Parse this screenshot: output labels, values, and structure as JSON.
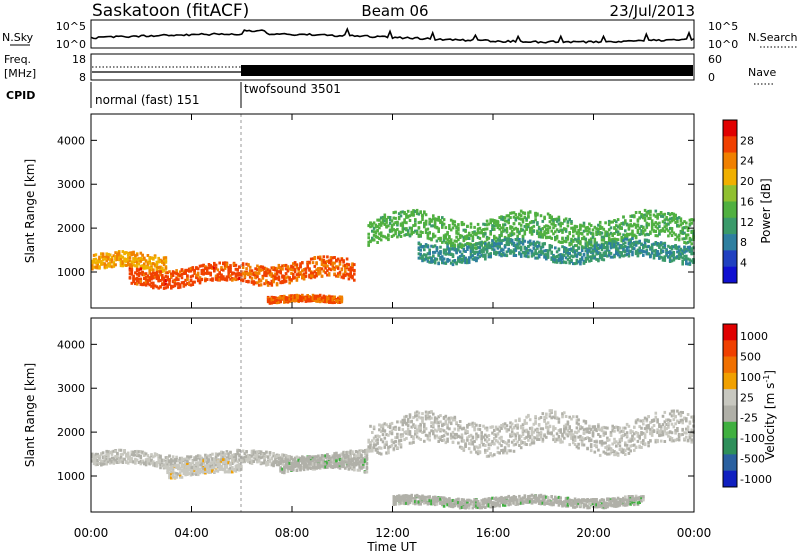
{
  "header": {
    "station": "Saskatoon (fitACF)",
    "beam": "Beam 06",
    "date": "23/Jul/2013"
  },
  "noise_panel": {
    "left_label": "N.Sky",
    "right_label": "N.Search",
    "left_ticks": [
      "10^5",
      "10^0"
    ],
    "right_ticks": [
      "10^5",
      "10^0"
    ]
  },
  "freq_panel": {
    "left_label_1": "Freq.",
    "left_label_2": "[MHz]",
    "right_label": "Nave",
    "left_ticks": [
      "18",
      "8"
    ],
    "right_ticks": [
      "60",
      "0"
    ]
  },
  "cpid_panel": {
    "label": "CPID",
    "segments": [
      {
        "name": "normal (fast) 151",
        "start_hour": 0,
        "end_hour": 6
      },
      {
        "name": "twofsound 3501",
        "start_hour": 6,
        "end_hour": 24
      }
    ]
  },
  "time_axis": {
    "label": "Time UT",
    "ticks": [
      "00:00",
      "04:00",
      "08:00",
      "12:00",
      "16:00",
      "20:00",
      "00:00"
    ],
    "range_hours": [
      0,
      24
    ]
  },
  "power_panel": {
    "ylabel": "Slant Range [km]",
    "yticks": [
      "1000",
      "2000",
      "3000",
      "4000"
    ],
    "colorbar_label": "Power [dB]",
    "colorbar_ticks": [
      "4",
      "8",
      "12",
      "16",
      "20",
      "24",
      "28"
    ]
  },
  "velocity_panel": {
    "ylabel": "Slant Range [km]",
    "yticks": [
      "1000",
      "2000",
      "3000",
      "4000"
    ],
    "colorbar_label": "Velocity [m s",
    "colorbar_label_sup": "-1",
    "colorbar_label_end": "]",
    "colorbar_ticks": [
      "1000",
      "500",
      "100",
      "25",
      "-25",
      "-100",
      "-500",
      "-1000"
    ]
  },
  "colors": {
    "power_scale": [
      "#1010d0",
      "#2040c0",
      "#2e7fa0",
      "#3a9a6a",
      "#50b040",
      "#90c030",
      "#f0b000",
      "#f08000",
      "#f04000",
      "#e00000"
    ],
    "velocity_scale": [
      "#1020c0",
      "#2a60a0",
      "#2e8f5a",
      "#40b040",
      "#b0b0a8",
      "#c8c8c0",
      "#f0a000",
      "#f07000",
      "#f04000",
      "#e00000"
    ]
  },
  "chart_data": [
    {
      "type": "heatmap",
      "title": "Power",
      "ylabel": "Slant Range [km]",
      "xlabel": "Time UT",
      "xlim": [
        0,
        24
      ],
      "ylim": [
        180,
        4600
      ],
      "colorbar": {
        "label": "Power [dB]",
        "range": [
          0,
          32
        ]
      },
      "features": [
        {
          "t_start": 0.0,
          "t_end": 3.0,
          "r_center": 1250,
          "width": 350,
          "value": 22
        },
        {
          "t_start": 1.5,
          "t_end": 6.0,
          "r_center": 950,
          "width": 400,
          "value": 27
        },
        {
          "t_start": 6.0,
          "t_end": 10.5,
          "r_center": 1050,
          "width": 450,
          "value": 26
        },
        {
          "t_start": 7.0,
          "t_end": 10.0,
          "r_center": 400,
          "width": 150,
          "value": 26
        },
        {
          "t_start": 11.0,
          "t_end": 24.0,
          "r_center": 2000,
          "width": 600,
          "value": 14
        },
        {
          "t_start": 13.0,
          "t_end": 24.0,
          "r_center": 1500,
          "width": 400,
          "value": 10
        }
      ]
    },
    {
      "type": "heatmap",
      "title": "Velocity",
      "ylabel": "Slant Range [km]",
      "xlabel": "Time UT",
      "xlim": [
        0,
        24
      ],
      "ylim": [
        180,
        4600
      ],
      "colorbar": {
        "label": "Velocity [m s-1]",
        "range": [
          -1000,
          1000
        ]
      },
      "features": [
        {
          "t_start": 0.0,
          "t_end": 11.0,
          "r_center": 1400,
          "width": 300,
          "value": 0
        },
        {
          "t_start": 3.0,
          "t_end": 6.0,
          "r_center": 1200,
          "width": 300,
          "value": 100
        },
        {
          "t_start": 7.5,
          "t_end": 11.0,
          "r_center": 1300,
          "width": 300,
          "value": -100
        },
        {
          "t_start": 11.0,
          "t_end": 24.0,
          "r_center": 2000,
          "width": 700,
          "value": 0
        },
        {
          "t_start": 12.0,
          "t_end": 22.0,
          "r_center": 450,
          "width": 200,
          "value": -100
        }
      ]
    }
  ]
}
